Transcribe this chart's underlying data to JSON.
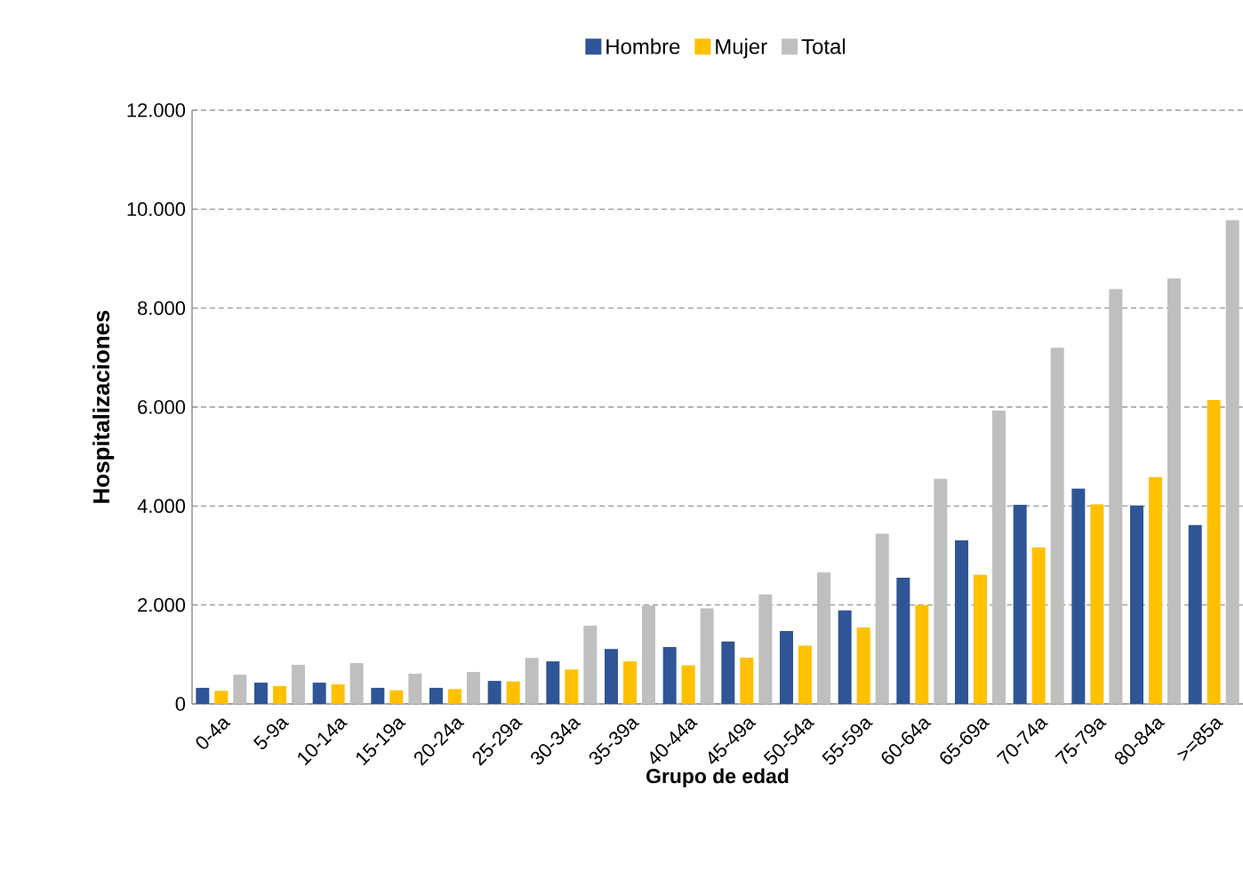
{
  "chart_data": {
    "type": "bar",
    "xlabel": "Grupo de edad",
    "ylabel": "Hospitalizaciones",
    "categories": [
      "0-4a",
      "5-9a",
      "10-14a",
      "15-19a",
      "20-24a",
      "25-29a",
      "30-34a",
      "35-39a",
      "40-44a",
      "45-49a",
      "50-54a",
      "55-59a",
      "60-64a",
      "65-69a",
      "70-74a",
      "75-79a",
      "80-84a",
      ">=85a"
    ],
    "series": [
      {
        "name": "Hombre",
        "color": "#2f5597",
        "values": [
          325,
          430,
          430,
          325,
          325,
          465,
          860,
          1110,
          1150,
          1260,
          1475,
          1890,
          2550,
          3305,
          4025,
          4350,
          4010,
          3615
        ]
      },
      {
        "name": "Mujer",
        "color": "#ffc000",
        "values": [
          265,
          360,
          395,
          275,
          300,
          455,
          695,
          860,
          780,
          935,
          1175,
          1545,
          2000,
          2610,
          3160,
          4035,
          4585,
          6145
        ]
      },
      {
        "name": "Total",
        "color": "#bfbfbf",
        "values": [
          590,
          790,
          825,
          610,
          645,
          930,
          1580,
          1990,
          1930,
          2215,
          2660,
          3440,
          4550,
          5930,
          7200,
          8385,
          8600,
          9775
        ]
      }
    ],
    "ylim": [
      0,
      12000
    ],
    "yticks": [
      0,
      {
        "value": 2000,
        "label": "2.000"
      },
      {
        "value": 4000,
        "label": "4.000"
      },
      {
        "value": 6000,
        "label": "6.000"
      },
      {
        "value": 8000,
        "label": "8.000"
      },
      {
        "value": 10000,
        "label": "10.000"
      },
      {
        "value": 12000,
        "label": "12.000"
      }
    ],
    "grid": "y",
    "legend": "top"
  }
}
